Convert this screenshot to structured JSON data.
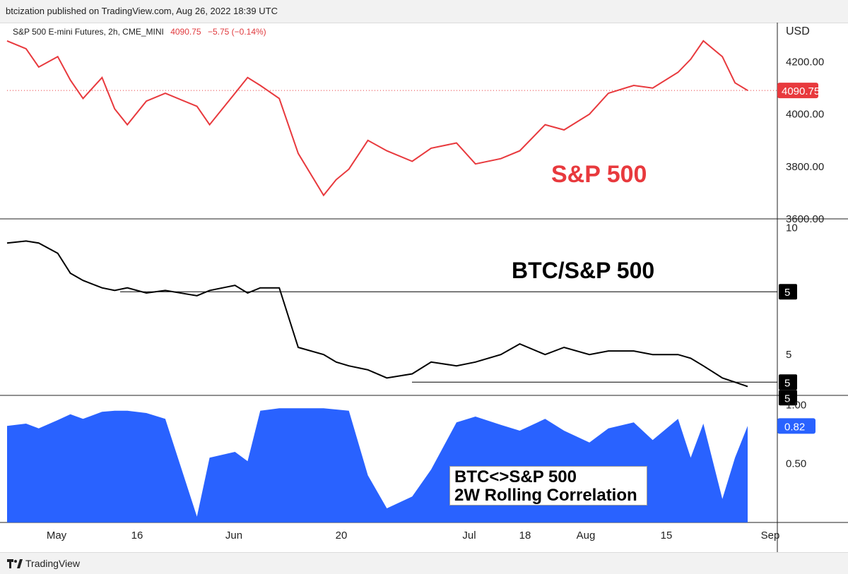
{
  "header": {
    "published": "btcization published on TradingView.com, Aug 26, 2022 18:39 UTC"
  },
  "legend": {
    "symbol": "S&P 500 E-mini Futures, 2h, CME_MINI",
    "price": "4090.75",
    "change": "−5.75 (−0.14%)"
  },
  "currency": "USD",
  "colors": {
    "sp_line": "#e8393d",
    "btc_line": "#000000",
    "corr_fill": "#2962ff",
    "grid": "#000000"
  },
  "annotations": {
    "sp": "S&P 500",
    "btc": "BTC/S&P 500",
    "corr_line1": "BTC<>S&P 500",
    "corr_line2": "2W Rolling Correlation"
  },
  "footer": {
    "brand": "TradingView"
  },
  "x_axis": {
    "labels": [
      "May",
      "16",
      "Jun",
      "20",
      "Jul",
      "18",
      "Aug",
      "15",
      "Sep"
    ]
  },
  "chart_data": [
    {
      "type": "line",
      "series": [
        {
          "name": "S&P 500 E-mini Futures",
          "color": "#e8393d"
        }
      ],
      "x": [
        "2022-05-01",
        "2022-05-04",
        "2022-05-06",
        "2022-05-09",
        "2022-05-11",
        "2022-05-13",
        "2022-05-16",
        "2022-05-18",
        "2022-05-20",
        "2022-05-23",
        "2022-05-26",
        "2022-05-31",
        "2022-06-02",
        "2022-06-06",
        "2022-06-08",
        "2022-06-10",
        "2022-06-13",
        "2022-06-16",
        "2022-06-20",
        "2022-06-22",
        "2022-06-24",
        "2022-06-27",
        "2022-06-30",
        "2022-07-04",
        "2022-07-07",
        "2022-07-11",
        "2022-07-14",
        "2022-07-18",
        "2022-07-21",
        "2022-07-25",
        "2022-07-28",
        "2022-08-01",
        "2022-08-04",
        "2022-08-08",
        "2022-08-11",
        "2022-08-15",
        "2022-08-17",
        "2022-08-19",
        "2022-08-22",
        "2022-08-24",
        "2022-08-26"
      ],
      "y": [
        4280,
        4250,
        4180,
        4220,
        4130,
        4060,
        4140,
        4020,
        3960,
        4050,
        4080,
        4030,
        3960,
        4080,
        4140,
        4110,
        4060,
        3850,
        3690,
        3750,
        3790,
        3900,
        3860,
        3820,
        3870,
        3890,
        3810,
        3830,
        3860,
        3960,
        3940,
        4000,
        4080,
        4110,
        4100,
        4160,
        4210,
        4280,
        4220,
        4120,
        4090.75
      ],
      "y_ticks": [
        "3600.00",
        "3800.00",
        "4000.00",
        "4200.00"
      ],
      "current": "4090.75",
      "ylim": [
        3600,
        4300
      ]
    },
    {
      "type": "line",
      "series": [
        {
          "name": "BTC/S&P 500",
          "color": "#000000"
        }
      ],
      "x": [
        "2022-05-01",
        "2022-05-04",
        "2022-05-06",
        "2022-05-09",
        "2022-05-11",
        "2022-05-13",
        "2022-05-16",
        "2022-05-18",
        "2022-05-20",
        "2022-05-23",
        "2022-05-26",
        "2022-05-31",
        "2022-06-02",
        "2022-06-06",
        "2022-06-08",
        "2022-06-10",
        "2022-06-13",
        "2022-06-16",
        "2022-06-20",
        "2022-06-22",
        "2022-06-24",
        "2022-06-27",
        "2022-06-30",
        "2022-07-04",
        "2022-07-07",
        "2022-07-11",
        "2022-07-14",
        "2022-07-18",
        "2022-07-21",
        "2022-07-25",
        "2022-07-28",
        "2022-08-01",
        "2022-08-04",
        "2022-08-08",
        "2022-08-11",
        "2022-08-15",
        "2022-08-17",
        "2022-08-19",
        "2022-08-22",
        "2022-08-24",
        "2022-08-26"
      ],
      "y": [
        9.2,
        9.3,
        9.2,
        8.7,
        7.8,
        7.5,
        7.2,
        7.1,
        7.2,
        7.0,
        7.1,
        6.9,
        7.1,
        7.3,
        7.0,
        7.2,
        7.2,
        5.2,
        5.0,
        4.8,
        4.7,
        4.6,
        4.4,
        4.5,
        4.8,
        4.7,
        4.8,
        5.0,
        5.3,
        5.0,
        5.2,
        5.0,
        5.1,
        5.1,
        5.0,
        5.0,
        4.9,
        4.7,
        4.4,
        4.3,
        4.2
      ],
      "y_ticks": [
        "5",
        "10"
      ],
      "markers": [
        "5",
        "5",
        "5"
      ],
      "ylim": [
        4,
        10
      ]
    },
    {
      "type": "area",
      "series": [
        {
          "name": "BTC<>S&P 500 2W Rolling Correlation",
          "color": "#2962ff"
        }
      ],
      "x": [
        "2022-05-01",
        "2022-05-04",
        "2022-05-06",
        "2022-05-09",
        "2022-05-11",
        "2022-05-13",
        "2022-05-16",
        "2022-05-18",
        "2022-05-20",
        "2022-05-23",
        "2022-05-26",
        "2022-05-31",
        "2022-06-02",
        "2022-06-06",
        "2022-06-08",
        "2022-06-10",
        "2022-06-13",
        "2022-06-16",
        "2022-06-20",
        "2022-06-22",
        "2022-06-24",
        "2022-06-27",
        "2022-06-30",
        "2022-07-04",
        "2022-07-07",
        "2022-07-11",
        "2022-07-14",
        "2022-07-18",
        "2022-07-21",
        "2022-07-25",
        "2022-07-28",
        "2022-08-01",
        "2022-08-04",
        "2022-08-08",
        "2022-08-11",
        "2022-08-15",
        "2022-08-17",
        "2022-08-19",
        "2022-08-22",
        "2022-08-24",
        "2022-08-26"
      ],
      "y": [
        0.82,
        0.84,
        0.8,
        0.87,
        0.92,
        0.88,
        0.94,
        0.95,
        0.95,
        0.93,
        0.88,
        0.05,
        0.55,
        0.6,
        0.52,
        0.95,
        0.97,
        0.97,
        0.97,
        0.96,
        0.95,
        0.4,
        0.12,
        0.22,
        0.45,
        0.85,
        0.9,
        0.83,
        0.78,
        0.88,
        0.78,
        0.68,
        0.8,
        0.85,
        0.7,
        0.88,
        0.55,
        0.84,
        0.2,
        0.55,
        0.82
      ],
      "y_ticks": [
        "0.50",
        "1.00"
      ],
      "current": "0.82",
      "ylim": [
        0,
        1
      ]
    }
  ]
}
